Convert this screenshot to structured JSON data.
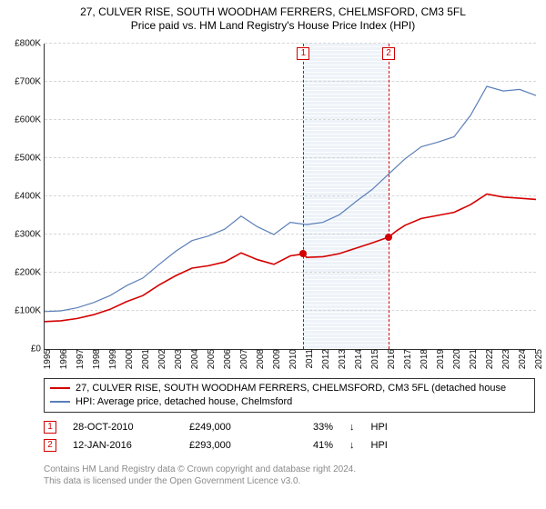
{
  "title_line1": "27, CULVER RISE, SOUTH WOODHAM FERRERS, CHELMSFORD, CM3 5FL",
  "title_line2": "Price paid vs. HM Land Registry's House Price Index (HPI)",
  "title_fontsize": 12,
  "chart": {
    "type": "line",
    "background_color": "#ffffff",
    "grid_color": "#d6d6d6",
    "hatched_fill": "#eef3f9",
    "y": {
      "min": 0,
      "max": 800000,
      "step": 100000,
      "ticks": [
        "£0",
        "£100K",
        "£200K",
        "£300K",
        "£400K",
        "£500K",
        "£600K",
        "£700K",
        "£800K"
      ],
      "tick_fontsize": 10
    },
    "x": {
      "min": 1995,
      "max": 2025,
      "ticks": [
        "1995",
        "1996",
        "1997",
        "1998",
        "1999",
        "2000",
        "2001",
        "2002",
        "2003",
        "2004",
        "2005",
        "2006",
        "2007",
        "2008",
        "2009",
        "2010",
        "2011",
        "2012",
        "2013",
        "2014",
        "2015",
        "2016",
        "2017",
        "2018",
        "2019",
        "2020",
        "2021",
        "2022",
        "2023",
        "2024",
        "2025"
      ],
      "tick_fontsize": 10
    },
    "hatched_range": {
      "start": 2010.8,
      "end": 2016.0
    },
    "vlines": [
      {
        "x": 2010.8,
        "color": "#d40000"
      },
      {
        "x": 2016.0,
        "color": "#d40000"
      }
    ],
    "markers_top": [
      {
        "x": 2010.8,
        "label": "1",
        "border": "#d40000",
        "text": "#d40000"
      },
      {
        "x": 2016.0,
        "label": "2",
        "border": "#d40000",
        "text": "#d40000"
      }
    ],
    "series": [
      {
        "name": "property",
        "color": "#d40000",
        "width": 1.6,
        "points": [
          [
            1995,
            72000
          ],
          [
            1996,
            74000
          ],
          [
            1997,
            80000
          ],
          [
            1998,
            90000
          ],
          [
            1999,
            104000
          ],
          [
            2000,
            124000
          ],
          [
            2001,
            140000
          ],
          [
            2002,
            168000
          ],
          [
            2003,
            192000
          ],
          [
            2004,
            212000
          ],
          [
            2005,
            218000
          ],
          [
            2006,
            228000
          ],
          [
            2007,
            252000
          ],
          [
            2008,
            234000
          ],
          [
            2009,
            222000
          ],
          [
            2010,
            244000
          ],
          [
            2010.8,
            249000
          ],
          [
            2011,
            240000
          ],
          [
            2012,
            242000
          ],
          [
            2013,
            250000
          ],
          [
            2014,
            264000
          ],
          [
            2015,
            278000
          ],
          [
            2016.0,
            293000
          ],
          [
            2016.5,
            310000
          ],
          [
            2017,
            324000
          ],
          [
            2018,
            342000
          ],
          [
            2019,
            350000
          ],
          [
            2020,
            358000
          ],
          [
            2021,
            378000
          ],
          [
            2022,
            406000
          ],
          [
            2023,
            398000
          ],
          [
            2024,
            395000
          ],
          [
            2025,
            392000
          ]
        ],
        "dots": [
          [
            2010.8,
            249000
          ],
          [
            2016.0,
            293000
          ]
        ]
      },
      {
        "name": "hpi",
        "color": "#5b7fb8",
        "width": 1.2,
        "points": [
          [
            1995,
            98000
          ],
          [
            1996,
            100000
          ],
          [
            1997,
            108000
          ],
          [
            1998,
            122000
          ],
          [
            1999,
            140000
          ],
          [
            2000,
            166000
          ],
          [
            2001,
            186000
          ],
          [
            2002,
            222000
          ],
          [
            2003,
            256000
          ],
          [
            2004,
            284000
          ],
          [
            2005,
            296000
          ],
          [
            2006,
            314000
          ],
          [
            2007,
            348000
          ],
          [
            2008,
            320000
          ],
          [
            2009,
            300000
          ],
          [
            2010,
            332000
          ],
          [
            2011,
            326000
          ],
          [
            2012,
            332000
          ],
          [
            2013,
            352000
          ],
          [
            2014,
            386000
          ],
          [
            2015,
            418000
          ],
          [
            2016,
            458000
          ],
          [
            2017,
            498000
          ],
          [
            2018,
            530000
          ],
          [
            2019,
            542000
          ],
          [
            2020,
            556000
          ],
          [
            2021,
            612000
          ],
          [
            2022,
            688000
          ],
          [
            2023,
            676000
          ],
          [
            2024,
            680000
          ],
          [
            2025,
            664000
          ]
        ]
      }
    ]
  },
  "legend": {
    "border_color": "#333333",
    "items": [
      {
        "color": "#d40000",
        "label": "27, CULVER RISE, SOUTH WOODHAM FERRERS, CHELMSFORD, CM3 5FL (detached house"
      },
      {
        "color": "#5b7fb8",
        "label": "HPI: Average price, detached house, Chelmsford"
      }
    ]
  },
  "events": [
    {
      "num": "1",
      "border": "#d40000",
      "date": "28-OCT-2010",
      "price": "£249,000",
      "pct": "33%",
      "arrow": "↓",
      "tag": "HPI"
    },
    {
      "num": "2",
      "border": "#d40000",
      "date": "12-JAN-2016",
      "price": "£293,000",
      "pct": "41%",
      "arrow": "↓",
      "tag": "HPI"
    }
  ],
  "footer": {
    "line1": "Contains HM Land Registry data © Crown copyright and database right 2024.",
    "line2": "This data is licensed under the Open Government Licence v3.0.",
    "color": "#8a8a8a",
    "fontsize": 10
  }
}
